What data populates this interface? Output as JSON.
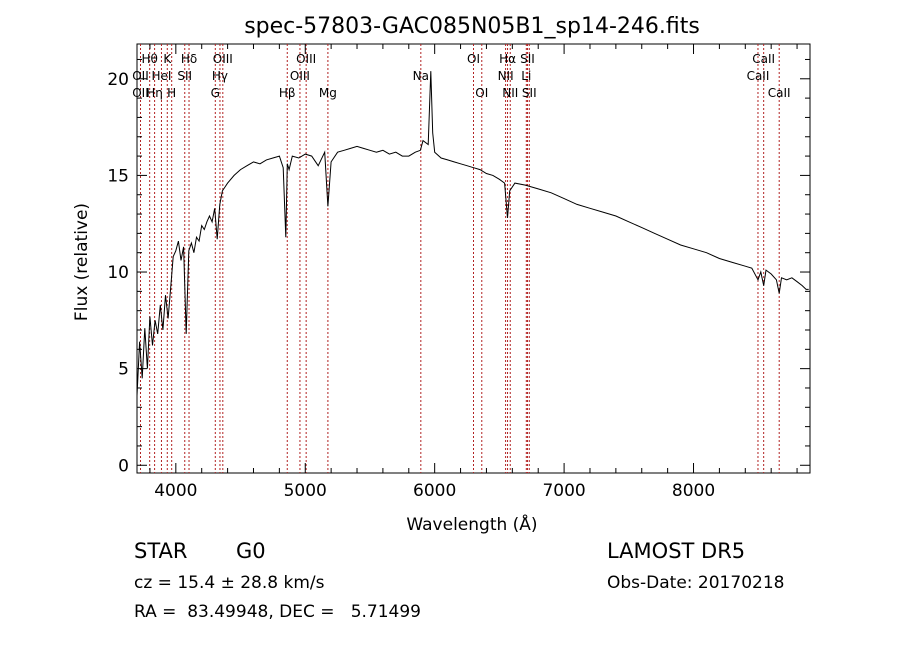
{
  "chart_data": {
    "type": "line",
    "title": "spec-57803-GAC085N05B1_sp14-246.fits",
    "xlabel": "Wavelength (Å)",
    "ylabel": "Flux (relative)",
    "xlim": [
      3700,
      8900
    ],
    "ylim": [
      -0.4,
      21.8
    ],
    "xticks": [
      4000,
      5000,
      6000,
      7000,
      8000
    ],
    "yticks": [
      0,
      5,
      10,
      15,
      20
    ],
    "grid": false,
    "series": [
      {
        "x": [
          3700,
          3720,
          3740,
          3760,
          3780,
          3800,
          3820,
          3840,
          3860,
          3880,
          3900,
          3920,
          3940,
          3960,
          3980,
          4000,
          4020,
          4040,
          4060,
          4080,
          4100,
          4120,
          4140,
          4160,
          4180,
          4200,
          4220,
          4240,
          4260,
          4280,
          4300,
          4320,
          4340,
          4360,
          4380,
          4400,
          4450,
          4500,
          4550,
          4600,
          4650,
          4700,
          4750,
          4800,
          4830,
          4850,
          4861,
          4875,
          4900,
          4950,
          5000,
          5050,
          5100,
          5150,
          5175,
          5200,
          5250,
          5300,
          5350,
          5400,
          5450,
          5500,
          5550,
          5600,
          5650,
          5700,
          5750,
          5800,
          5850,
          5890,
          5910,
          5950,
          5970,
          5985,
          6000,
          6050,
          6100,
          6150,
          6200,
          6250,
          6300,
          6350,
          6400,
          6450,
          6500,
          6540,
          6563,
          6580,
          6620,
          6700,
          6800,
          6900,
          7000,
          7100,
          7200,
          7300,
          7400,
          7500,
          7600,
          7700,
          7800,
          7900,
          8000,
          8100,
          8200,
          8300,
          8400,
          8450,
          8498,
          8520,
          8542,
          8560,
          8600,
          8640,
          8662,
          8680,
          8720,
          8760,
          8800,
          8840,
          8870,
          8890
        ],
        "values": [
          3.6,
          6.4,
          4.5,
          7.1,
          5.0,
          7.7,
          6.2,
          7.5,
          6.8,
          8.3,
          7.0,
          8.8,
          7.6,
          9.2,
          10.8,
          11.1,
          11.6,
          10.6,
          11.3,
          6.8,
          11.1,
          11.5,
          11.0,
          11.8,
          11.6,
          12.4,
          12.2,
          12.6,
          12.9,
          12.6,
          13.3,
          11.7,
          13.5,
          14.2,
          14.4,
          14.6,
          15.0,
          15.3,
          15.5,
          15.7,
          15.6,
          15.8,
          15.9,
          16.0,
          15.4,
          11.8,
          15.6,
          15.3,
          16.0,
          15.9,
          16.1,
          16.0,
          15.5,
          16.2,
          13.4,
          15.7,
          16.2,
          16.3,
          16.4,
          16.5,
          16.4,
          16.3,
          16.2,
          16.3,
          16.1,
          16.2,
          16.0,
          16.0,
          16.2,
          16.3,
          16.8,
          16.6,
          20.4,
          17.2,
          16.2,
          15.9,
          15.8,
          15.7,
          15.6,
          15.5,
          15.4,
          15.3,
          15.1,
          15.0,
          14.8,
          14.6,
          12.8,
          14.2,
          14.6,
          14.5,
          14.3,
          14.1,
          13.8,
          13.5,
          13.3,
          13.1,
          12.9,
          12.6,
          12.3,
          12.0,
          11.7,
          11.4,
          11.2,
          11.0,
          10.7,
          10.5,
          10.3,
          10.2,
          9.6,
          10.0,
          9.3,
          10.1,
          9.9,
          9.6,
          8.9,
          9.7,
          9.6,
          9.7,
          9.5,
          9.3,
          9.1,
          9.1
        ]
      }
    ],
    "lines": [
      {
        "label": "Hθ",
        "x": 3798,
        "row": 0
      },
      {
        "label": "OII",
        "x": 3727,
        "row": 1
      },
      {
        "label": "OII",
        "x": 3727,
        "row": 2
      },
      {
        "label": "K",
        "x": 3934,
        "row": 0
      },
      {
        "label": "HeI",
        "x": 3889,
        "row": 1
      },
      {
        "label": "Hη",
        "x": 3836,
        "row": 2
      },
      {
        "label": "H",
        "x": 3968,
        "row": 2
      },
      {
        "label": "Hδ",
        "x": 4102,
        "row": 0
      },
      {
        "label": "SII",
        "x": 4069,
        "row": 1
      },
      {
        "label": "OIII",
        "x": 4363,
        "row": 0
      },
      {
        "label": "Hγ",
        "x": 4341,
        "row": 1
      },
      {
        "label": "G",
        "x": 4305,
        "row": 2
      },
      {
        "label": "OIII",
        "x": 5007,
        "row": 0
      },
      {
        "label": "OIII",
        "x": 4959,
        "row": 1
      },
      {
        "label": "Hβ",
        "x": 4861,
        "row": 2
      },
      {
        "label": "Mg",
        "x": 5175,
        "row": 2
      },
      {
        "label": "Na",
        "x": 5893,
        "row": 1
      },
      {
        "label": "OI",
        "x": 6300,
        "row": 0
      },
      {
        "label": "OI",
        "x": 6364,
        "row": 2
      },
      {
        "label": "Hα",
        "x": 6563,
        "row": 0
      },
      {
        "label": "NII",
        "x": 6548,
        "row": 1
      },
      {
        "label": "NII",
        "x": 6584,
        "row": 2
      },
      {
        "label": "SII",
        "x": 6717,
        "row": 0
      },
      {
        "label": "Li",
        "x": 6708,
        "row": 1
      },
      {
        "label": "SII",
        "x": 6731,
        "row": 2
      },
      {
        "label": "CaII",
        "x": 8542,
        "row": 0
      },
      {
        "label": "CaII",
        "x": 8498,
        "row": 1
      },
      {
        "label": "CaII",
        "x": 8662,
        "row": 2
      }
    ],
    "line_color": "#b22222"
  },
  "info": {
    "class": "STAR",
    "subclass": "G0",
    "survey": "LAMOST DR5",
    "cz": "cz = 15.4 ± 28.8 km/s",
    "obs_date": "Obs-Date: 20170218",
    "radec": "RA =  83.49948, DEC =   5.71499"
  }
}
